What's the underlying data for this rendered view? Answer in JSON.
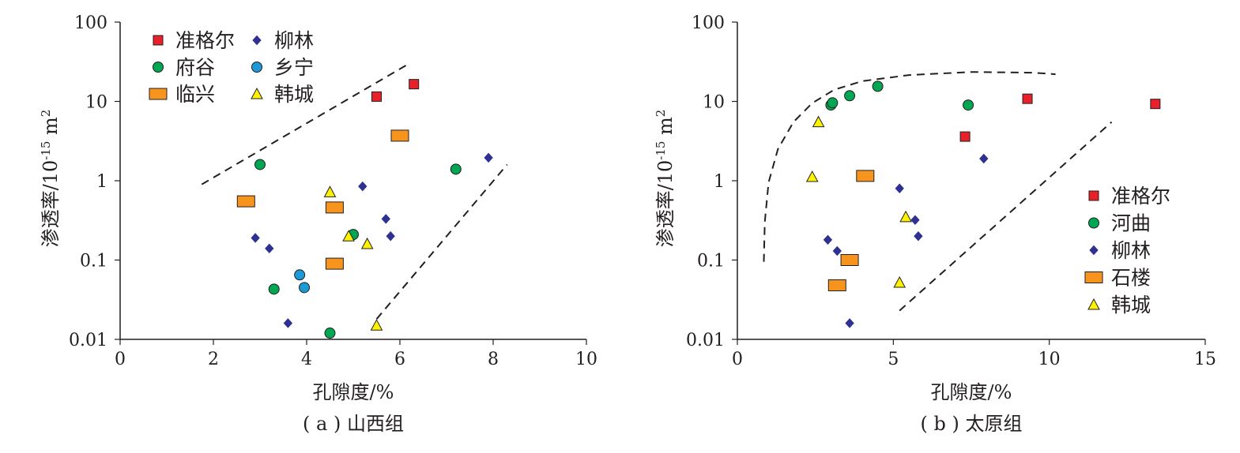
{
  "chart_data": [
    {
      "type": "scatter",
      "caption": "( a ) 山西组",
      "xlabel": "孔隙度/%",
      "ylabel_main": "渗透率/10",
      "ylabel_exp": "-15",
      "ylabel_unit": " m",
      "ylabel_sup": "2",
      "xlim": [
        0,
        10
      ],
      "ylim": [
        0.01,
        100
      ],
      "yscale": "log",
      "xticks": [
        "0",
        "2",
        "4",
        "6",
        "8",
        "10"
      ],
      "yticks": [
        "0.01",
        "0.1",
        "1",
        "10",
        "100"
      ],
      "legend_placement": "top-left",
      "legend_columns": 2,
      "series": [
        {
          "name": "准格尔",
          "marker": "square",
          "color": "#e8202a",
          "points": [
            [
              5.5,
              11.5
            ],
            [
              6.3,
              16.5
            ]
          ]
        },
        {
          "name": "柳林",
          "marker": "diamond",
          "color": "#2e3192",
          "points": [
            [
              2.9,
              0.19
            ],
            [
              3.2,
              0.14
            ],
            [
              3.6,
              0.016
            ],
            [
              5.2,
              0.85
            ],
            [
              5.7,
              0.33
            ],
            [
              5.8,
              0.2
            ],
            [
              7.9,
              1.95
            ]
          ]
        },
        {
          "name": "府谷",
          "marker": "circle",
          "color": "#00a651",
          "points": [
            [
              3.0,
              1.6
            ],
            [
              3.3,
              0.043
            ],
            [
              4.5,
              0.012
            ],
            [
              5.0,
              0.21
            ],
            [
              7.2,
              1.4
            ]
          ]
        },
        {
          "name": "乡宁",
          "marker": "circle",
          "color": "#1c9ad6",
          "points": [
            [
              3.85,
              0.065
            ],
            [
              3.95,
              0.045
            ]
          ]
        },
        {
          "name": "临兴",
          "marker": "rect",
          "color": "#f7941d",
          "points": [
            [
              2.7,
              0.55
            ],
            [
              4.6,
              0.46
            ],
            [
              4.6,
              0.09
            ],
            [
              6.0,
              3.7
            ]
          ]
        },
        {
          "name": "韩城",
          "marker": "triangle",
          "color": "#fff200",
          "points": [
            [
              4.5,
              0.72
            ],
            [
              4.9,
              0.2
            ],
            [
              5.3,
              0.16
            ],
            [
              5.5,
              0.015
            ]
          ]
        }
      ],
      "envelope_lines": [
        [
          [
            1.75,
            0.9
          ],
          [
            6.2,
            30
          ]
        ],
        [
          [
            5.5,
            0.018
          ],
          [
            8.3,
            1.6
          ]
        ]
      ]
    },
    {
      "type": "scatter",
      "caption": "( b ) 太原组",
      "xlabel": "孔隙度/%",
      "ylabel_main": "渗透率/10",
      "ylabel_exp": "-15",
      "ylabel_unit": " m",
      "ylabel_sup": "2",
      "xlim": [
        0,
        15
      ],
      "ylim": [
        0.01,
        100
      ],
      "yscale": "log",
      "xticks": [
        "0",
        "5",
        "10",
        "15"
      ],
      "yticks": [
        "0.01",
        "0.1",
        "1",
        "10",
        "100"
      ],
      "legend_placement": "bottom-right",
      "legend_columns": 1,
      "series": [
        {
          "name": "准格尔",
          "marker": "square",
          "color": "#e8202a",
          "points": [
            [
              7.3,
              3.6
            ],
            [
              9.3,
              10.8
            ],
            [
              13.4,
              9.3
            ]
          ]
        },
        {
          "name": "河曲",
          "marker": "circle",
          "color": "#00a651",
          "points": [
            [
              3.0,
              9.0
            ],
            [
              3.05,
              9.6
            ],
            [
              3.6,
              11.8
            ],
            [
              4.5,
              15.5
            ],
            [
              7.4,
              9.0
            ]
          ]
        },
        {
          "name": "柳林",
          "marker": "diamond",
          "color": "#2e3192",
          "points": [
            [
              2.9,
              0.18
            ],
            [
              3.2,
              0.13
            ],
            [
              3.6,
              0.016
            ],
            [
              5.2,
              0.8
            ],
            [
              5.7,
              0.32
            ],
            [
              5.8,
              0.2
            ],
            [
              7.9,
              1.9
            ]
          ]
        },
        {
          "name": "石楼",
          "marker": "rect",
          "color": "#f7941d",
          "points": [
            [
              3.2,
              0.048
            ],
            [
              3.6,
              0.1
            ],
            [
              4.1,
              1.15
            ]
          ]
        },
        {
          "name": "韩城",
          "marker": "triangle",
          "color": "#fff200",
          "points": [
            [
              2.4,
              1.12
            ],
            [
              2.6,
              5.5
            ],
            [
              5.2,
              0.052
            ],
            [
              5.4,
              0.35
            ]
          ]
        }
      ],
      "envelope_lines": [
        [
          [
            0.85,
            0.095
          ],
          [
            0.88,
            0.3
          ],
          [
            1.0,
            0.95
          ],
          [
            1.3,
            2.5
          ],
          [
            1.8,
            5.5
          ],
          [
            2.4,
            9.5
          ],
          [
            3.1,
            14
          ],
          [
            4.0,
            18
          ],
          [
            5.5,
            21.5
          ],
          [
            7.5,
            23.5
          ],
          [
            9.5,
            23
          ],
          [
            10.2,
            22
          ]
        ],
        [
          [
            5.2,
            0.023
          ],
          [
            12.0,
            5.5
          ]
        ]
      ]
    }
  ]
}
